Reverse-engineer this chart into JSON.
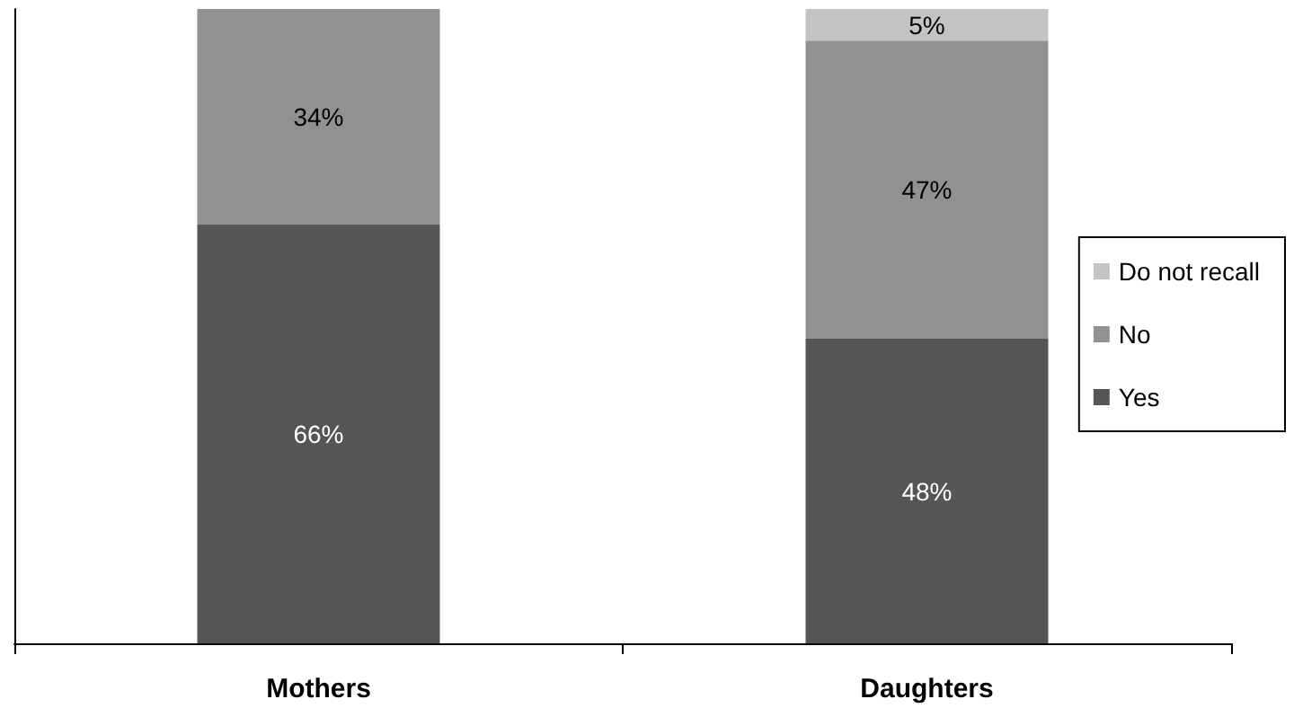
{
  "chart_data": {
    "type": "bar",
    "stacked": true,
    "categories": [
      "Mothers",
      "Daughters"
    ],
    "series": [
      {
        "name": "Yes",
        "color": "#545554",
        "values": [
          66,
          48
        ],
        "value_labels": [
          "66%",
          "48%"
        ]
      },
      {
        "name": "No",
        "color": "#919191",
        "values": [
          34,
          47
        ],
        "value_labels": [
          "34%",
          "47%"
        ]
      },
      {
        "name": "Do not recall",
        "color": "#c3c3c3",
        "values": [
          null,
          5
        ],
        "value_labels": [
          null,
          "5%"
        ]
      }
    ],
    "legend": "right",
    "grid": false
  }
}
